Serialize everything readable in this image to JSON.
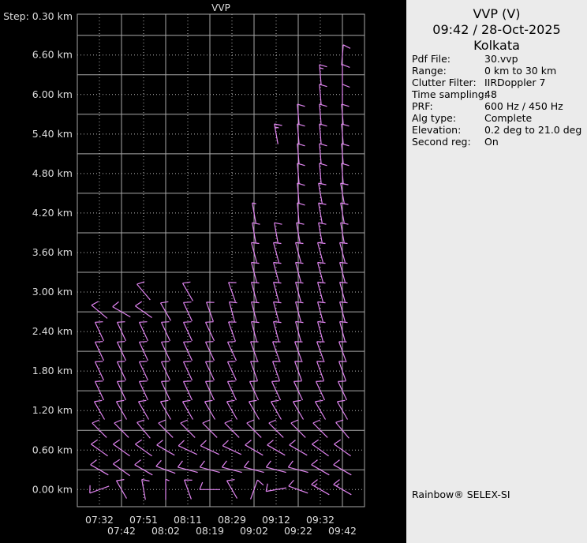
{
  "chart_data": {
    "type": "wind-barb",
    "title": "VVP",
    "step_label": "Step: 0.30 km",
    "y_unit": "km",
    "ylim": [
      -0.26,
      7.22
    ],
    "y_ticks": [
      "0.00 km",
      "0.60 km",
      "1.20 km",
      "1.80 km",
      "2.40 km",
      "3.00 km",
      "3.60 km",
      "4.20 km",
      "4.80 km",
      "5.40 km",
      "6.00 km",
      "6.60 km"
    ],
    "y_tick_values": [
      0,
      0.6,
      1.2,
      1.8,
      2.4,
      3.0,
      3.6,
      4.2,
      4.8,
      5.4,
      6.0,
      6.6
    ],
    "level_step_km": 0.3,
    "grid": true,
    "barb_color": "#e084f0",
    "grid_color": "#a8a8a8",
    "columns": [
      {
        "time": "07:32",
        "barbs": [
          [
            250,
            10
          ],
          [
            300,
            10
          ],
          [
            305,
            10
          ],
          [
            315,
            10
          ],
          [
            330,
            10
          ],
          [
            335,
            10
          ],
          [
            335,
            10
          ],
          [
            335,
            10
          ],
          [
            335,
            10
          ],
          [
            310,
            10
          ]
        ]
      },
      {
        "time": "07:42",
        "barbs": [
          [
            330,
            10
          ],
          [
            305,
            10
          ],
          [
            305,
            10
          ],
          [
            315,
            10
          ],
          [
            330,
            10
          ],
          [
            335,
            10
          ],
          [
            335,
            10
          ],
          [
            335,
            10
          ],
          [
            335,
            10
          ],
          [
            300,
            10
          ]
        ]
      },
      {
        "time": "07:51",
        "barbs": [
          [
            350,
            10
          ],
          [
            300,
            10
          ],
          [
            305,
            10
          ],
          [
            320,
            10
          ],
          [
            330,
            10
          ],
          [
            335,
            10
          ],
          [
            335,
            10
          ],
          [
            335,
            10
          ],
          [
            335,
            10
          ],
          [
            305,
            10
          ],
          [
            320,
            10
          ]
        ]
      },
      {
        "time": "08:02",
        "barbs": [
          [
            0,
            5
          ],
          [
            290,
            10
          ],
          [
            300,
            10
          ],
          [
            315,
            10
          ],
          [
            330,
            10
          ],
          [
            335,
            10
          ],
          [
            335,
            10
          ],
          [
            335,
            10
          ],
          [
            335,
            10
          ],
          [
            330,
            10
          ]
        ]
      },
      {
        "time": "08:11",
        "barbs": [
          [
            340,
            10
          ],
          [
            285,
            10
          ],
          [
            295,
            10
          ],
          [
            315,
            10
          ],
          [
            330,
            10
          ],
          [
            335,
            10
          ],
          [
            335,
            10
          ],
          [
            335,
            10
          ],
          [
            335,
            10
          ],
          [
            335,
            10
          ],
          [
            330,
            10
          ]
        ]
      },
      {
        "time": "08:19",
        "barbs": [
          [
            270,
            10
          ],
          [
            285,
            10
          ],
          [
            295,
            10
          ],
          [
            315,
            10
          ],
          [
            330,
            10
          ],
          [
            335,
            10
          ],
          [
            335,
            10
          ],
          [
            335,
            10
          ],
          [
            335,
            10
          ],
          [
            340,
            10
          ]
        ]
      },
      {
        "time": "08:29",
        "barbs": [
          [
            330,
            10
          ],
          [
            285,
            10
          ],
          [
            295,
            10
          ],
          [
            315,
            10
          ],
          [
            330,
            10
          ],
          [
            335,
            10
          ],
          [
            335,
            10
          ],
          [
            335,
            10
          ],
          [
            340,
            10
          ],
          [
            345,
            10
          ],
          [
            340,
            10
          ]
        ]
      },
      {
        "time": "09:02",
        "barbs": [
          [
            20,
            10
          ],
          [
            285,
            10
          ],
          [
            300,
            10
          ],
          [
            315,
            10
          ],
          [
            330,
            10
          ],
          [
            335,
            10
          ],
          [
            340,
            10
          ],
          [
            340,
            10
          ],
          [
            345,
            10
          ],
          [
            345,
            10
          ],
          [
            345,
            10
          ],
          [
            345,
            10
          ],
          [
            345,
            10
          ],
          [
            350,
            10
          ],
          [
            350,
            5
          ]
        ]
      },
      {
        "time": "09:12",
        "barbs": [
          [
            260,
            10
          ],
          [
            285,
            10
          ],
          [
            300,
            10
          ],
          [
            315,
            10
          ],
          [
            330,
            10
          ],
          [
            335,
            10
          ],
          [
            340,
            10
          ],
          [
            340,
            10
          ],
          [
            345,
            10
          ],
          [
            345,
            10
          ],
          [
            345,
            10
          ],
          [
            345,
            10
          ],
          [
            345,
            10
          ],
          [
            350,
            10
          ],
          null,
          null,
          null,
          null,
          [
            350,
            15
          ]
        ]
      },
      {
        "time": "09:22",
        "barbs": [
          [
            290,
            10
          ],
          [
            285,
            10
          ],
          [
            300,
            10
          ],
          [
            315,
            10
          ],
          [
            330,
            10
          ],
          [
            335,
            10
          ],
          [
            340,
            10
          ],
          [
            340,
            10
          ],
          [
            345,
            10
          ],
          [
            345,
            10
          ],
          [
            345,
            10
          ],
          [
            345,
            10
          ],
          [
            345,
            10
          ],
          [
            350,
            10
          ],
          [
            355,
            10
          ],
          [
            355,
            10
          ],
          [
            355,
            10
          ],
          [
            355,
            10
          ],
          [
            355,
            10
          ],
          [
            355,
            10
          ]
        ]
      },
      {
        "time": "09:32",
        "barbs": [
          [
            300,
            15
          ],
          [
            300,
            10
          ],
          [
            305,
            10
          ],
          [
            315,
            10
          ],
          [
            330,
            10
          ],
          [
            335,
            10
          ],
          [
            340,
            10
          ],
          [
            340,
            10
          ],
          [
            345,
            10
          ],
          [
            345,
            10
          ],
          [
            345,
            10
          ],
          [
            345,
            10
          ],
          [
            345,
            10
          ],
          [
            350,
            10
          ],
          [
            350,
            10
          ],
          [
            350,
            10
          ],
          [
            355,
            10
          ],
          [
            355,
            10
          ],
          [
            355,
            10
          ],
          [
            355,
            10
          ],
          [
            355,
            10
          ],
          [
            355,
            15
          ]
        ]
      },
      {
        "time": "09:42",
        "barbs": [
          [
            300,
            15
          ],
          [
            300,
            10
          ],
          [
            305,
            10
          ],
          [
            320,
            10
          ],
          [
            330,
            10
          ],
          [
            335,
            10
          ],
          [
            340,
            10
          ],
          [
            340,
            10
          ],
          [
            345,
            10
          ],
          [
            345,
            10
          ],
          [
            345,
            10
          ],
          [
            345,
            10
          ],
          [
            345,
            10
          ],
          [
            350,
            10
          ],
          [
            350,
            10
          ],
          [
            350,
            10
          ],
          [
            355,
            10
          ],
          [
            355,
            10
          ],
          [
            355,
            10
          ],
          [
            355,
            10
          ],
          [
            0,
            10
          ],
          [
            0,
            10
          ],
          [
            5,
            10
          ]
        ]
      }
    ]
  },
  "panel": {
    "title": "VVP (V)",
    "datetime": "09:42 / 28-Oct-2025",
    "site": "Kolkata",
    "info": [
      {
        "key": "Pdf File:",
        "value": "30.vvp"
      },
      {
        "key": "Range:",
        "value": "0 km to 30 km"
      },
      {
        "key": "Clutter Filter:",
        "value": "IIRDoppler 7"
      },
      {
        "key": "Time sampling:",
        "value": "48"
      },
      {
        "key": "PRF:",
        "value": "600 Hz / 450 Hz"
      },
      {
        "key": "Alg type:",
        "value": "Complete"
      },
      {
        "key": "Elevation:",
        "value": "0.2 deg to 21.0 deg"
      },
      {
        "key": "Second reg:",
        "value": "On"
      }
    ],
    "footer": "Rainbow® SELEX-SI"
  }
}
